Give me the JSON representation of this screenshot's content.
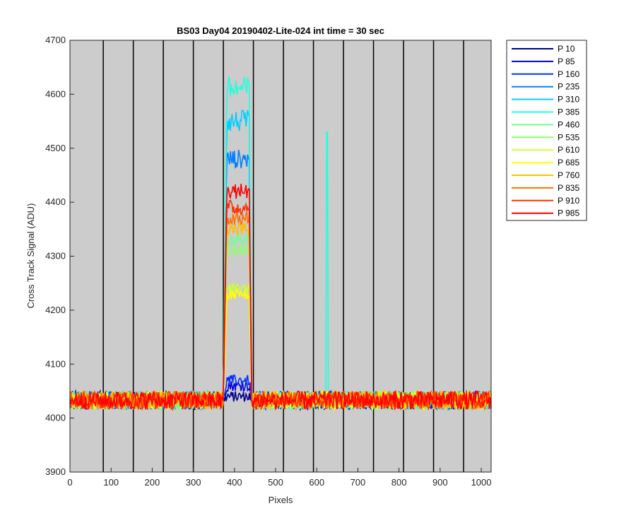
{
  "chart_data": {
    "type": "line",
    "title": "BS03 Day04 20190402-Lite-024 int time = 30 sec",
    "xlabel": "Pixels",
    "ylabel": "Cross Track Signal (ADU)",
    "xlim": [
      0,
      1024
    ],
    "ylim": [
      3900,
      4700
    ],
    "xticks": [
      0,
      100,
      200,
      300,
      400,
      500,
      600,
      700,
      800,
      900,
      1000
    ],
    "yticks": [
      3900,
      4000,
      4100,
      4200,
      4300,
      4400,
      4500,
      4600,
      4700
    ],
    "background_color": "#cccccc",
    "grid": false,
    "legend_position": "outside-top-right",
    "column_boundaries": [
      81,
      154,
      227,
      300,
      373,
      446,
      519,
      592,
      665,
      738,
      811,
      884,
      957
    ],
    "baseline": 4033,
    "bump_range": [
      373,
      442
    ],
    "series": [
      {
        "name": "P 10",
        "color": "#00008f",
        "bump_level": 4040,
        "spike": null
      },
      {
        "name": "P 85",
        "color": "#0000df",
        "bump_level": 4060,
        "spike": null
      },
      {
        "name": "P 160",
        "color": "#0030ff",
        "bump_level": 4070,
        "spike": null
      },
      {
        "name": "P 235",
        "color": "#0080ff",
        "bump_level": 4480,
        "spike": null
      },
      {
        "name": "P 310",
        "color": "#00cfff",
        "bump_level": 4550,
        "spike": null
      },
      {
        "name": "P 385",
        "color": "#20ffdf",
        "bump_level": 4610,
        "spike": {
          "x": 625,
          "y": 4530
        }
      },
      {
        "name": "P 460",
        "color": "#70ff8f",
        "bump_level": 4330,
        "spike": null
      },
      {
        "name": "P 535",
        "color": "#90ff70",
        "bump_level": 4310,
        "spike": null
      },
      {
        "name": "P 610",
        "color": "#cfff30",
        "bump_level": 4240,
        "spike": null
      },
      {
        "name": "P 685",
        "color": "#ffff00",
        "bump_level": 4230,
        "spike": null
      },
      {
        "name": "P 760",
        "color": "#ffbf00",
        "bump_level": 4350,
        "spike": null
      },
      {
        "name": "P 835",
        "color": "#ff7000",
        "bump_level": 4370,
        "spike": null
      },
      {
        "name": "P 910",
        "color": "#ff3000",
        "bump_level": 4390,
        "spike": null
      },
      {
        "name": "P 985",
        "color": "#ff0000",
        "bump_level": 4420,
        "spike": null
      }
    ]
  }
}
